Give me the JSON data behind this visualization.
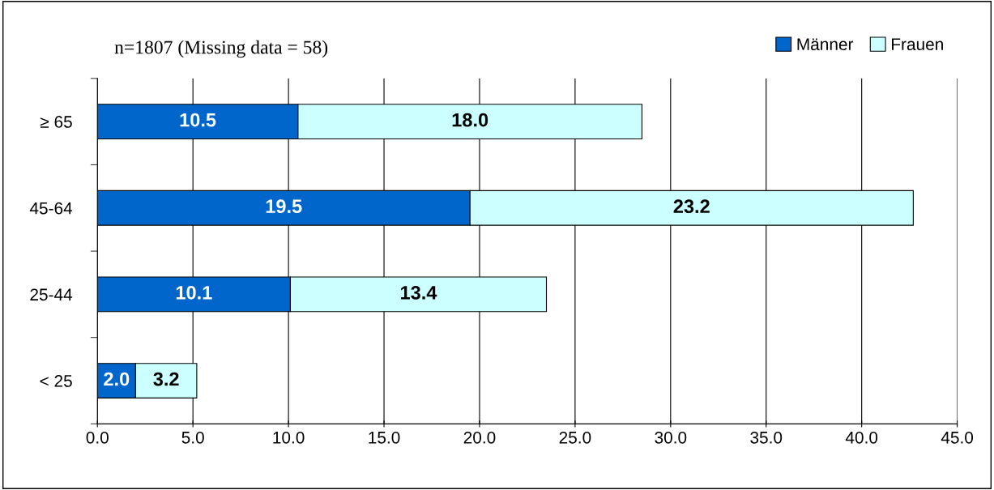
{
  "chart_data": {
    "type": "bar",
    "orientation": "horizontal",
    "stacked": true,
    "categories": [
      "≥ 65",
      "45-64",
      "25-44",
      "< 25"
    ],
    "series": [
      {
        "name": "Männer",
        "color": "#0066cc",
        "values": [
          10.5,
          19.5,
          10.1,
          2.0
        ],
        "value_labels": [
          "10.5",
          "19.5",
          "10.1",
          "2.0"
        ]
      },
      {
        "name": "Frauen",
        "color": "#ccffff",
        "values": [
          18.0,
          23.2,
          13.4,
          3.2
        ],
        "value_labels": [
          "18.0",
          "23.2",
          "13.4",
          "3.2"
        ]
      }
    ],
    "xlim": [
      0,
      45
    ],
    "xticks": [
      {
        "value": 0,
        "label": "0.0"
      },
      {
        "value": 5,
        "label": "5.0"
      },
      {
        "value": 10,
        "label": "10.0"
      },
      {
        "value": 15,
        "label": "15.0"
      },
      {
        "value": 20,
        "label": "20.0"
      },
      {
        "value": 25,
        "label": "25.0"
      },
      {
        "value": 30,
        "label": "30.0"
      },
      {
        "value": 35,
        "label": "35.0"
      },
      {
        "value": 40,
        "label": "40.0"
      },
      {
        "value": 45,
        "label": "45.0"
      }
    ],
    "annotations": [
      "n=1807 (Missing data = 58)"
    ],
    "grid": "x",
    "legend": "top right"
  }
}
